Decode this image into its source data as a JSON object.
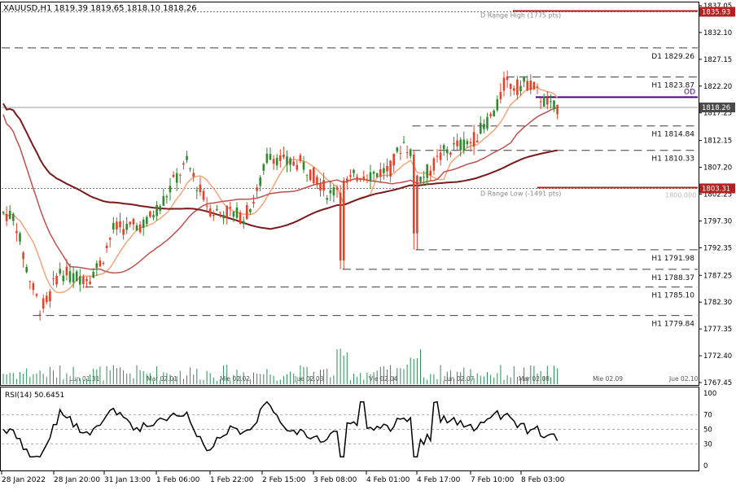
{
  "header": {
    "symbol_line": "XAUUSD,H1  1819.39 1819.65 1818.10 1818.26"
  },
  "rsi_label": "RSI(14) 50.6451",
  "colors": {
    "bull": "#2e8b2e",
    "bear": "#e0442a",
    "ma_fast": "#f4a57a",
    "ma_mid": "#c0504d",
    "ma_slow": "#7b1a1a",
    "level_dash": "#3d3d3d",
    "purple": "#4b0082",
    "range_red": "#b22222",
    "volume": "#2e8b57",
    "price_box": "#4a4a4a"
  },
  "chart_data": {
    "type": "candlestick",
    "symbol": "XAUUSD",
    "timeframe": "H1",
    "ohlc_last": {
      "open": 1819.39,
      "high": 1819.65,
      "low": 1818.1,
      "close": 1818.26
    },
    "ylim": [
      1767.45,
      1837.05
    ],
    "y_ticks": [
      "1837.05",
      "1832.10",
      "1827.15",
      "1822.20",
      "1817.25",
      "1812.15",
      "1807.20",
      "1802.25",
      "1797.30",
      "1792.35",
      "1787.25",
      "1782.30",
      "1777.35",
      "1772.40",
      "1767.45"
    ],
    "x_ticks": [
      "28 Jan 2022",
      "28 Jan 20:00",
      "31 Jan 13:00",
      "1 Feb 06:00",
      "1 Feb 22:00",
      "2 Feb 15:00",
      "3 Feb 08:00",
      "4 Feb 01:00",
      "4 Feb 17:00",
      "7 Feb 10:00",
      "8 Feb 03:00"
    ],
    "separator_labels": [
      "Lun 01.31",
      "Mar 02.01",
      "Mie 02.02",
      "Jue 02.03",
      "Vie 02.04",
      "Lun 02.07",
      "Mar 02.08",
      "Mie 02.09",
      "Jue 02.10"
    ],
    "current_price": "1818.26",
    "levels": [
      {
        "label": "D1 1829.26",
        "price": 1829.26,
        "style": "dash",
        "start_frac": 0.0
      },
      {
        "label": "H1 1823.87",
        "price": 1823.87,
        "style": "dash",
        "start_frac": 0.725
      },
      {
        "label": "H1 1814.84",
        "price": 1814.84,
        "style": "dash",
        "start_frac": 0.59
      },
      {
        "label": "H1 1810.33",
        "price": 1810.33,
        "style": "dash",
        "start_frac": 0.59
      },
      {
        "label": "H1 1791.98",
        "price": 1791.98,
        "style": "dash",
        "start_frac": 0.595
      },
      {
        "label": "H1 1788.37",
        "price": 1788.37,
        "style": "dash",
        "start_frac": 0.49
      },
      {
        "label": "H1 1785.10",
        "price": 1785.1,
        "style": "dash",
        "start_frac": 0.12
      },
      {
        "label": "H1 1779.84",
        "price": 1779.84,
        "style": "dash",
        "start_frac": 0.045
      }
    ],
    "range_high": {
      "label": "D Range High (1775 pts)",
      "price": 1835.93,
      "box": "1835.93"
    },
    "range_low": {
      "label": "D Range Low (-1491 pts)",
      "price": 1803.31,
      "box": "1803.31",
      "extra": "1800.000"
    },
    "od": {
      "label": "OD",
      "price": 1820.6
    },
    "rsi": {
      "period": 14,
      "value": 50.6451,
      "ticks": [
        "100",
        "70",
        "50",
        "30",
        "0"
      ]
    }
  }
}
